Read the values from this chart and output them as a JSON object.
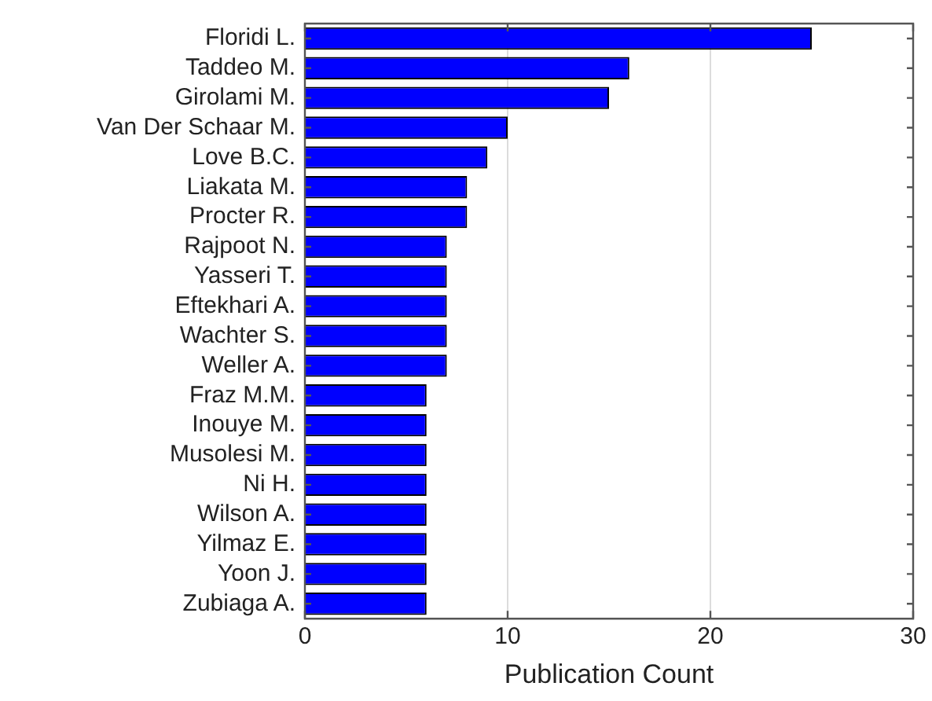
{
  "chart_data": {
    "type": "bar",
    "orientation": "horizontal",
    "xlabel": "Publication Count",
    "categories": [
      "Floridi L.",
      "Taddeo M.",
      "Girolami M.",
      "Van Der Schaar M.",
      "Love B.C.",
      "Liakata M.",
      "Procter R.",
      "Rajpoot N.",
      "Yasseri T.",
      "Eftekhari A.",
      "Wachter S.",
      "Weller A.",
      "Fraz M.M.",
      "Inouye M.",
      "Musolesi M.",
      "Ni H.",
      "Wilson A.",
      "Yilmaz E.",
      "Yoon J.",
      "Zubiaga A."
    ],
    "values": [
      25,
      16,
      15,
      10,
      9,
      8,
      8,
      7,
      7,
      7,
      7,
      7,
      6,
      6,
      6,
      6,
      6,
      6,
      6,
      6
    ],
    "color": "#0000ff",
    "xlim": [
      0,
      30
    ],
    "xticks": [
      0,
      10,
      20,
      30
    ],
    "grid": "x",
    "legend": false
  }
}
